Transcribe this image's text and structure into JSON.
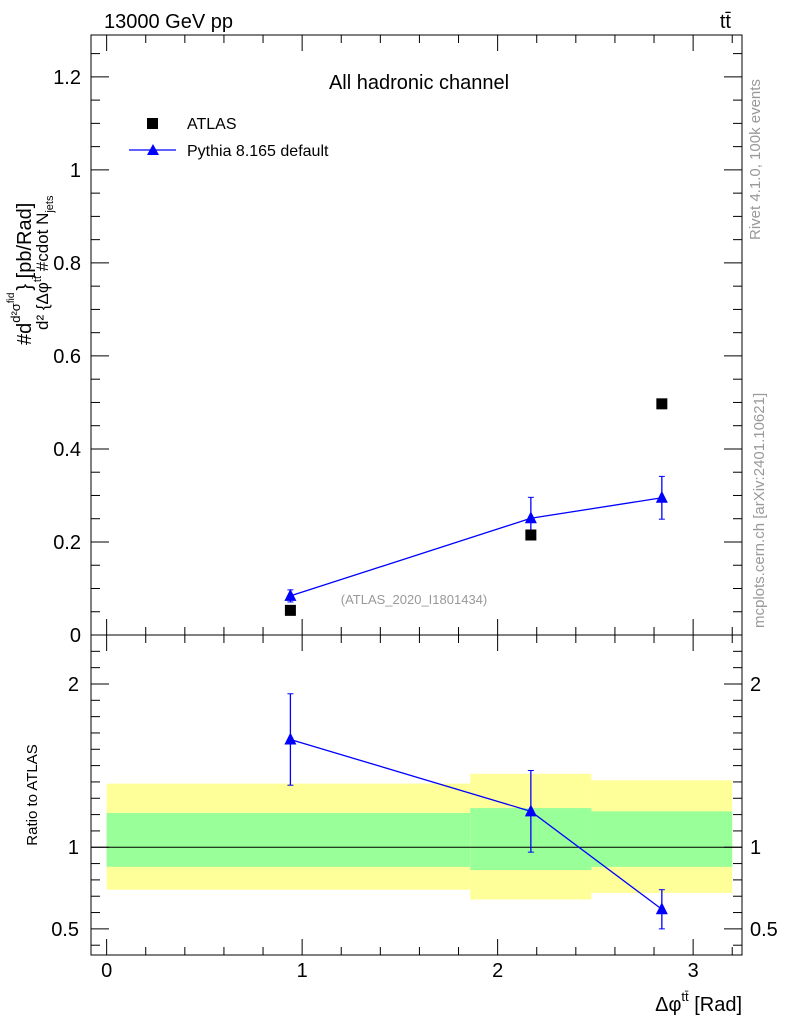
{
  "header": {
    "left_label": "13000 GeV pp",
    "right_label": "tt̄"
  },
  "side_text": {
    "rivet": "Rivet 4.1.0,  100k events",
    "mcplots": "mcplots.cern.ch [arXiv:2401.10621]"
  },
  "chart_data": [
    {
      "type": "scatter",
      "panel": "main",
      "title": "All hadronic channel",
      "analysis_label": "(ATLAS_2020_I1801434)",
      "ylabel": "#d d²σ^{fid} / d²{Δφ^{tt̄} #cdot N_jets} [pb/Rad]",
      "ylabel_parts": {
        "prefix": "#d",
        "numerator": "d²σ",
        "numerator_sup": "fid",
        "denominator_a": "d² {Δφ",
        "denominator_sup": "tt̄",
        "denominator_b": " #cdot N",
        "denominator_sub": "jets",
        "close": "} [pb/Rad]"
      },
      "xlim": [
        -0.08,
        3.25
      ],
      "ylim": [
        0,
        1.29
      ],
      "yticks": [
        0,
        0.2,
        0.4,
        0.6,
        0.8,
        1,
        1.2
      ],
      "ytick_labels": [
        "0",
        "0.2",
        "0.4",
        "0.6",
        "0.8",
        "1",
        "1.2"
      ],
      "legend": [
        "ATLAS",
        "Pythia 8.165 default"
      ],
      "legend_position": "top-left",
      "series": [
        {
          "name": "ATLAS",
          "marker": "square",
          "color": "#000000",
          "x": [
            0.94,
            2.17,
            2.84
          ],
          "y": [
            0.053,
            0.215,
            0.497
          ]
        },
        {
          "name": "Pythia 8.165 default",
          "marker": "triangle",
          "color": "#0000ff",
          "x": [
            0.94,
            2.17,
            2.84
          ],
          "y": [
            0.084,
            0.251,
            0.295
          ],
          "yerr": [
            0.013,
            0.045,
            0.046
          ]
        }
      ]
    },
    {
      "type": "scatter",
      "panel": "ratio",
      "ylabel": "Ratio to ATLAS",
      "xlabel": "Δφ^{tt̄} [Rad]",
      "xlabel_parts": {
        "main": "Δφ",
        "sup": "tt̄",
        "unit": " [Rad]"
      },
      "xlim": [
        -0.08,
        3.25
      ],
      "ylim": [
        0.34,
        2.3
      ],
      "xticks": [
        0,
        1,
        2,
        3
      ],
      "xtick_labels": [
        "0",
        "1",
        "2",
        "3"
      ],
      "yticks": [
        0.5,
        1,
        2
      ],
      "ytick_labels": [
        "0.5",
        "1",
        "2"
      ],
      "reference_line": 1,
      "bands": [
        {
          "x0": 0.0,
          "x1": 1.86,
          "yellow": [
            0.74,
            1.39
          ],
          "green": [
            0.88,
            1.21
          ]
        },
        {
          "x0": 1.86,
          "x1": 2.48,
          "yellow": [
            0.68,
            1.45
          ],
          "green": [
            0.86,
            1.24
          ]
        },
        {
          "x0": 2.48,
          "x1": 3.2,
          "yellow": [
            0.72,
            1.41
          ],
          "green": [
            0.88,
            1.22
          ]
        }
      ],
      "band_colors": {
        "yellow": "#ffff99",
        "green": "#99ff99"
      },
      "series": [
        {
          "name": "Pythia 8.165 default",
          "marker": "triangle",
          "color": "#0000ff",
          "x": [
            0.94,
            2.17,
            2.84
          ],
          "y": [
            1.66,
            1.22,
            0.62
          ],
          "yerr": [
            0.28,
            0.25,
            0.12
          ]
        }
      ]
    }
  ]
}
